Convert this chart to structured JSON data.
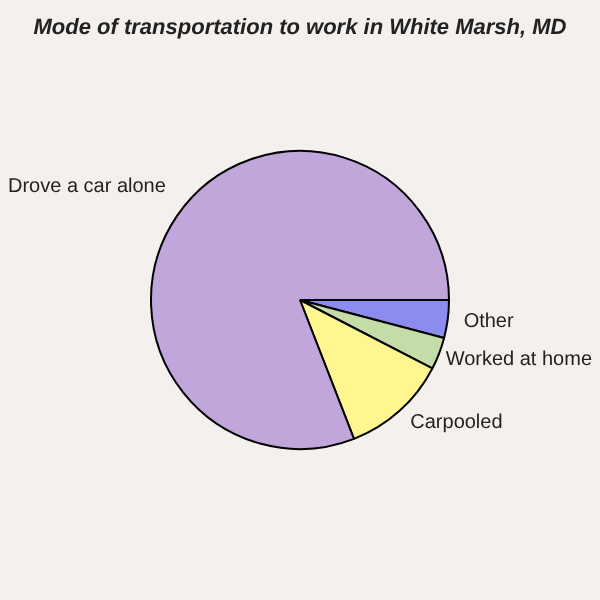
{
  "chart_data": {
    "type": "pie",
    "title": "Mode of transportation to work in White Marsh, MD",
    "categories": [
      "Other",
      "Worked at home",
      "Carpooled",
      "Drove a car alone"
    ],
    "values": [
      4.1,
      3.5,
      11.5,
      80.9
    ],
    "colors": [
      "#8c8cee",
      "#c4dca8",
      "#fff68f",
      "#c0a6da"
    ],
    "legend": false
  }
}
